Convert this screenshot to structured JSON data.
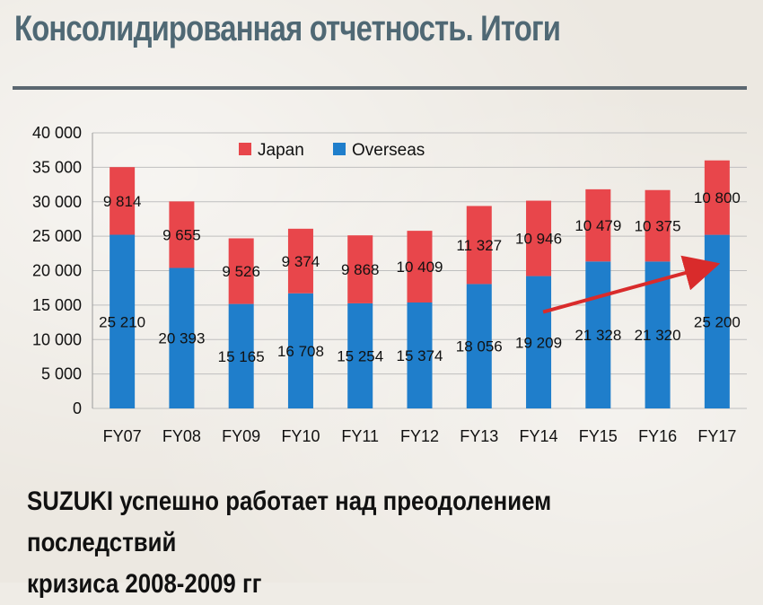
{
  "title": "Консолидированная отчетность. Итоги",
  "footer": {
    "line1": "SUZUKI успешно работает над преодолением последствий",
    "line2": "кризиса 2008-2009 гг"
  },
  "colors": {
    "japan": "#e8464b",
    "overseas": "#1f7ecb",
    "arrow": "#d92b2b",
    "grid": "#bfbfbf",
    "title": "#4f6874"
  },
  "chart_data": {
    "type": "bar",
    "stacked": true,
    "categories": [
      "FY07",
      "FY08",
      "FY09",
      "FY10",
      "FY11",
      "FY12",
      "FY13",
      "FY14",
      "FY15",
      "FY16",
      "FY17"
    ],
    "series": [
      {
        "name": "Overseas",
        "values": [
          25210,
          20393,
          15165,
          16708,
          15254,
          15374,
          18056,
          19209,
          21328,
          21320,
          25200
        ],
        "labels": [
          "25 210",
          "20 393",
          "15 165",
          "16 708",
          "15 254",
          "15 374",
          "18 056",
          "19 209",
          "21 328",
          "21 320",
          "25 200"
        ]
      },
      {
        "name": "Japan",
        "values": [
          9814,
          9655,
          9526,
          9374,
          9868,
          10409,
          11327,
          10946,
          10479,
          10375,
          10800
        ],
        "labels": [
          "9 814",
          "9 655",
          "9 526",
          "9 374",
          "9 868",
          "10 409",
          "11 327",
          "10 946",
          "10 479",
          "10 375",
          "10 800"
        ]
      }
    ],
    "ylim": [
      0,
      40000
    ],
    "yticks": [
      0,
      5000,
      10000,
      15000,
      20000,
      25000,
      30000,
      35000,
      40000
    ],
    "ytick_labels": [
      "0",
      "5 000",
      "10 000",
      "15 000",
      "20 000",
      "25 000",
      "30 000",
      "35 000",
      "40 000"
    ],
    "grid": true,
    "legend": {
      "position": "top-left",
      "entries": [
        "Japan",
        "Overseas"
      ]
    },
    "annotations": [
      {
        "type": "arrow",
        "from": {
          "x": "FY14",
          "y": 14000
        },
        "to": {
          "x": "FY17",
          "y": 20500
        }
      }
    ]
  }
}
